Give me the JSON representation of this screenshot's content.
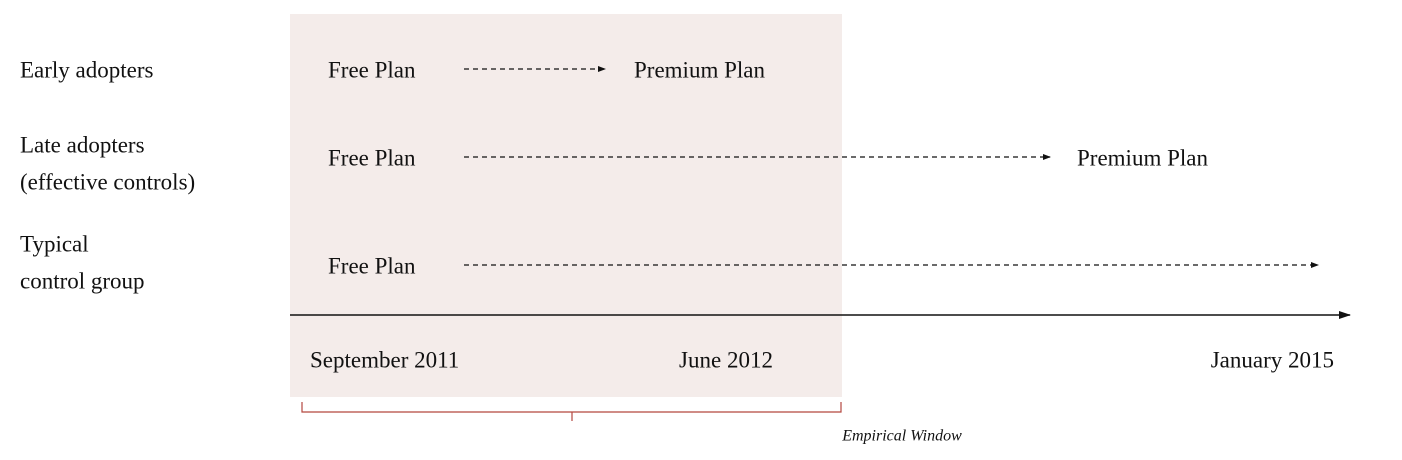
{
  "rows": [
    {
      "label": [
        "Early adopters"
      ],
      "start": "Free Plan",
      "end": "Premium Plan"
    },
    {
      "label": [
        "Late adopters",
        "(effective controls)"
      ],
      "start": "Free Plan",
      "end": "Premium Plan"
    },
    {
      "label": [
        "Typical",
        "control group"
      ],
      "start": "Free Plan"
    }
  ],
  "timeline": [
    "September 2011",
    "June 2012",
    "January 2015"
  ],
  "window": "Empirical Window"
}
